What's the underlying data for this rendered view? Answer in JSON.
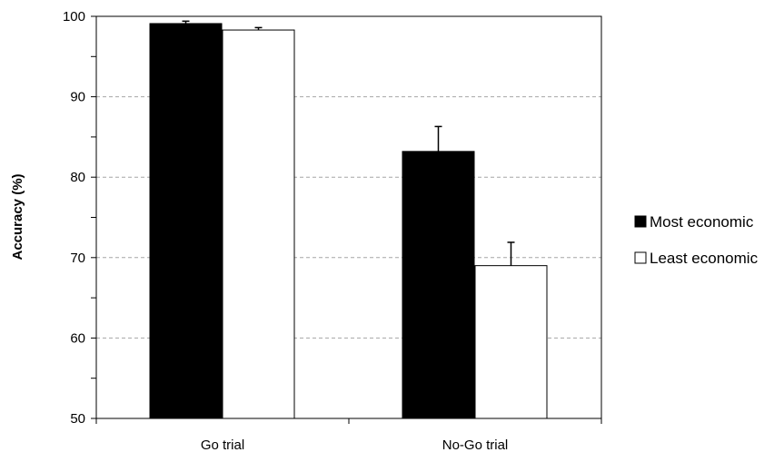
{
  "chart_data": {
    "type": "bar",
    "title": "",
    "xlabel": "",
    "ylabel": "Accuracy (%)",
    "ylim": [
      50,
      100
    ],
    "yticks": [
      50,
      60,
      70,
      80,
      90,
      100
    ],
    "categories": [
      "Go trial",
      "No-Go trial"
    ],
    "series": [
      {
        "name": "Most economic",
        "values": [
          99.1,
          83.2
        ],
        "errors": [
          0.3,
          3.1
        ],
        "color": "#000000"
      },
      {
        "name": "Least economic",
        "values": [
          98.3,
          69.0
        ],
        "errors": [
          0.3,
          2.9
        ],
        "color": "#ffffff"
      }
    ],
    "grid": true,
    "legend_position": "right"
  }
}
